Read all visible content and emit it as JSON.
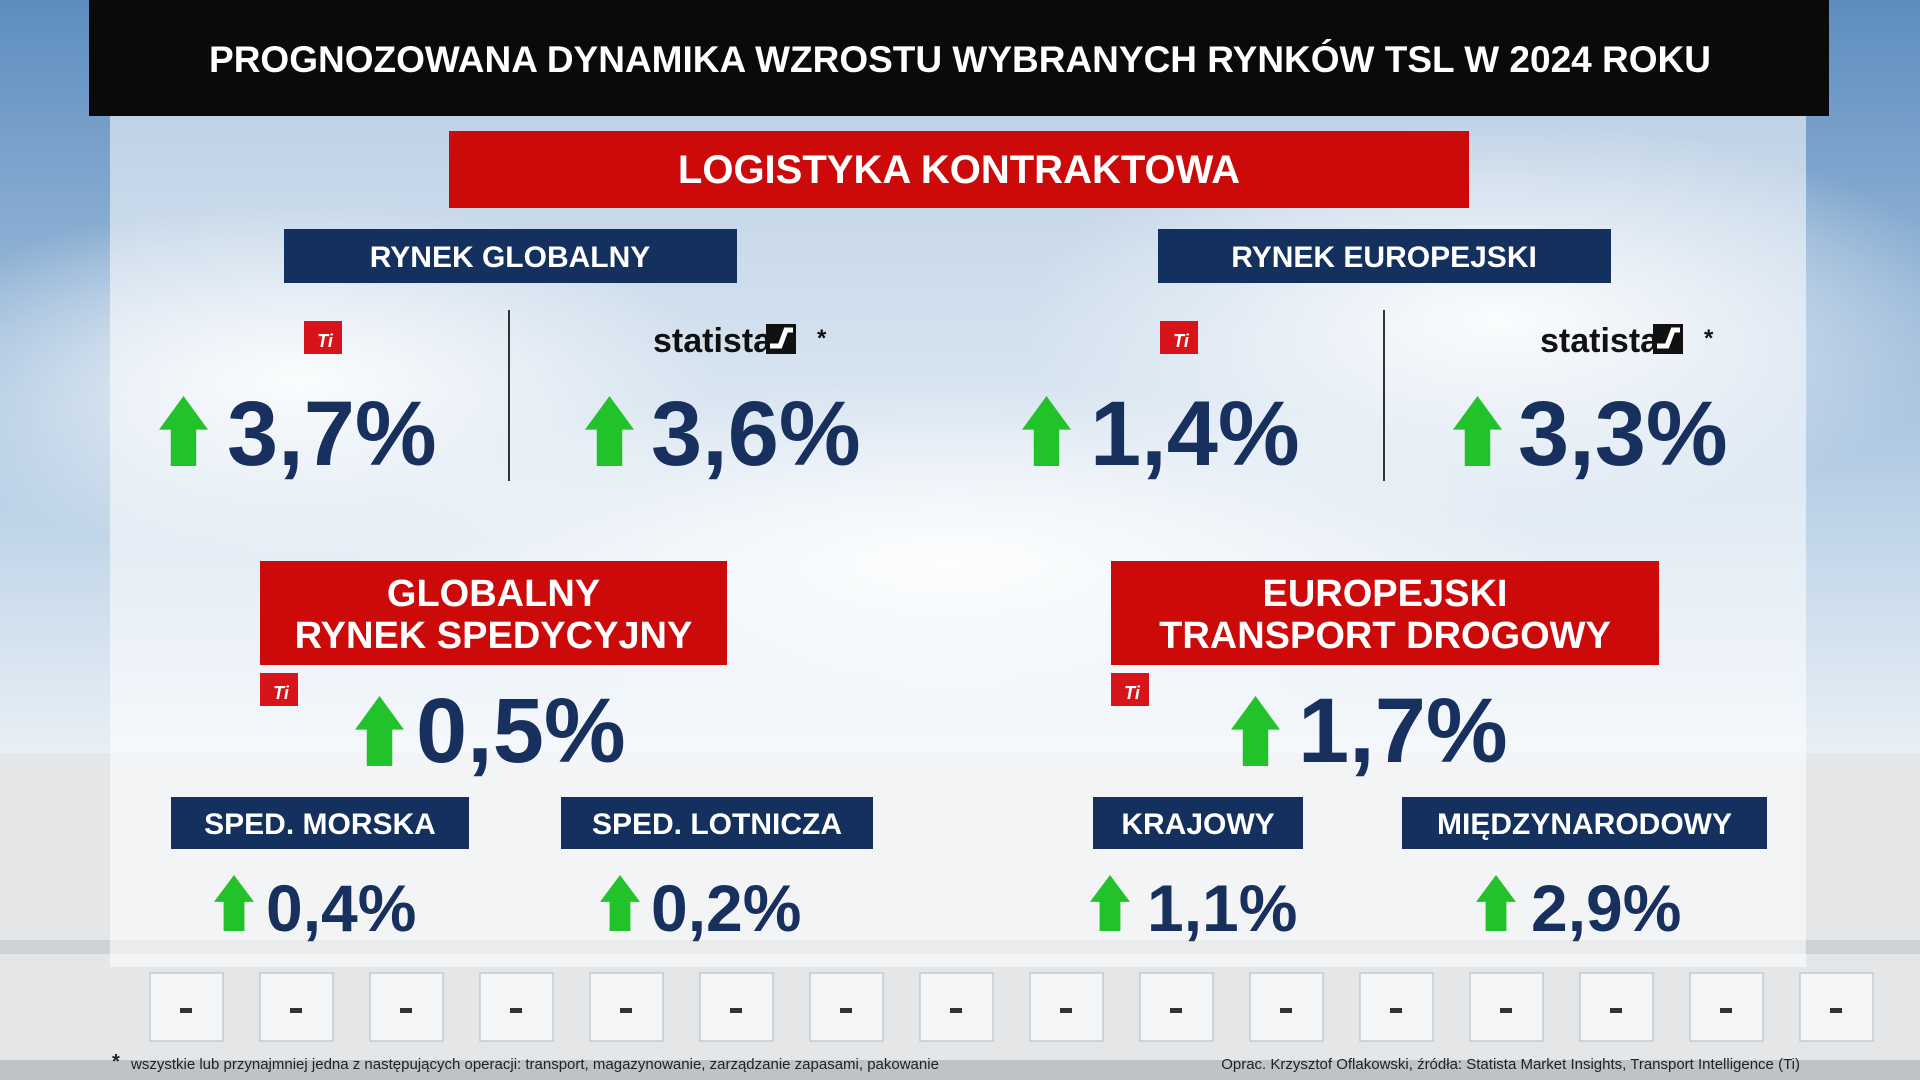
{
  "title": "PROGNOZOWANA DYNAMIKA WZROSTU WYBRANYCH RYNKÓW TSL W 2024 ROKU",
  "contract_logistics": {
    "title": "LOGISTYKA KONTRAKTOWA",
    "markets": [
      {
        "name": "RYNEK GLOBALNY",
        "forecasts": [
          {
            "source": "Ti",
            "value": "3,7%"
          },
          {
            "source": "statista",
            "marker": "*",
            "value": "3,6%"
          }
        ]
      },
      {
        "name": "RYNEK EUROPEJSKI",
        "forecasts": [
          {
            "source": "Ti",
            "value": "1,4%"
          },
          {
            "source": "statista",
            "marker": "*",
            "value": "3,3%"
          }
        ]
      }
    ]
  },
  "freight_forwarding": {
    "title_lines": [
      "GLOBALNY",
      "RYNEK SPEDYCYJNY"
    ],
    "source": "Ti",
    "value": "0,5%",
    "segments": [
      {
        "name": "SPED. MORSKA",
        "value": "0,4%"
      },
      {
        "name": "SPED. LOTNICZA",
        "value": "0,2%"
      }
    ]
  },
  "road_transport": {
    "title_lines": [
      "EUROPEJSKI",
      "TRANSPORT DROGOWY"
    ],
    "source": "Ti",
    "value": "1,7%",
    "segments": [
      {
        "name": "KRAJOWY",
        "value": "1,1%"
      },
      {
        "name": "MIĘDZYNARODOWY",
        "value": "2,9%"
      }
    ]
  },
  "footnote": {
    "marker": "*",
    "text": "wszystkie lub przynajmniej jedna z następujących operacji: transport, magazynowanie, zarządzanie zapasami, pakowanie"
  },
  "credits": "Oprac. Krzysztof Oflakowski, źródła: Statista Market Insights, Transport Intelligence (Ti)"
}
